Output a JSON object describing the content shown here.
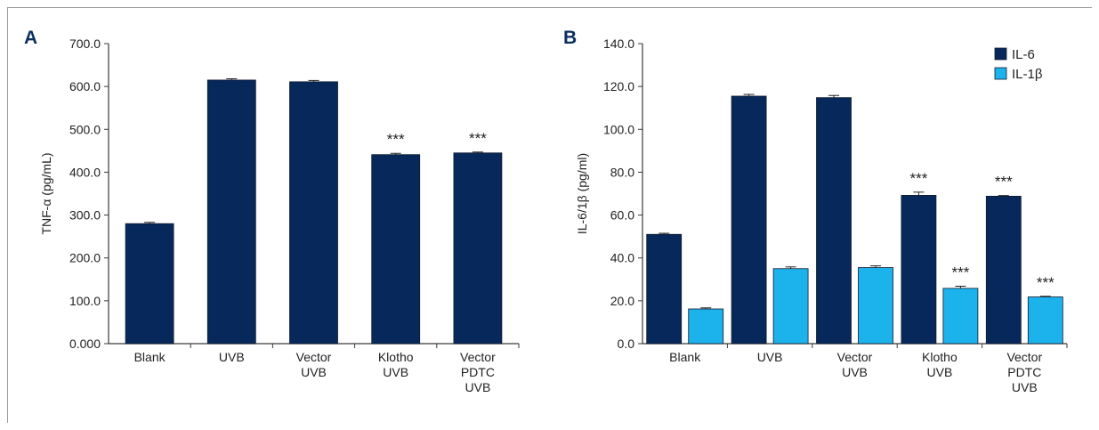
{
  "colors": {
    "il6": "#06285a",
    "il1b": "#1cb2ec",
    "axis": "#3a3a3a"
  },
  "chart_data": [
    {
      "panel": "A",
      "type": "bar",
      "ylabel": "TNF-α (pg/mL)",
      "ylim": [
        0,
        700
      ],
      "yticks": [
        "0.000",
        "100.0",
        "200.0",
        "300.0",
        "400.0",
        "500.0",
        "600.0",
        "700.0"
      ],
      "categories": [
        [
          "Blank"
        ],
        [
          "UVB"
        ],
        [
          "Vector",
          "UVB"
        ],
        [
          "Klotho",
          "UVB"
        ],
        [
          "Vector",
          "PDTC",
          "UVB"
        ]
      ],
      "series": [
        {
          "values": [
            280,
            615,
            611,
            441,
            445
          ],
          "errors": [
            3,
            3,
            3,
            3,
            2
          ],
          "color": "#06285a"
        }
      ],
      "annotations": [
        "",
        "",
        "",
        "***",
        "***"
      ]
    },
    {
      "panel": "B",
      "type": "bar",
      "ylabel": "IL-6/1β (pg/ml)",
      "ylim": [
        0,
        140
      ],
      "yticks": [
        "0.0",
        "20.0",
        "40.0",
        "60.0",
        "80.0",
        "100.0",
        "120.0",
        "140.0"
      ],
      "categories": [
        [
          "Blank"
        ],
        [
          "UVB"
        ],
        [
          "Vector",
          "UVB"
        ],
        [
          "Klotho",
          "UVB"
        ],
        [
          "Vector",
          "PDTC",
          "UVB"
        ]
      ],
      "series": [
        {
          "name": "IL-6",
          "values": [
            51,
            115.5,
            114.8,
            69.2,
            68.8
          ],
          "errors": [
            0.5,
            0.8,
            1.0,
            1.5,
            0.3
          ],
          "color": "#06285a"
        },
        {
          "name": "IL-1β",
          "values": [
            16.2,
            35,
            35.5,
            25.8,
            21.8
          ],
          "errors": [
            0.5,
            0.8,
            0.8,
            1.0,
            0.3
          ],
          "color": "#1cb2ec"
        }
      ],
      "annotations": [
        [
          "",
          "",
          "",
          "***",
          "***"
        ],
        [
          "",
          "",
          "",
          "***",
          "***"
        ]
      ],
      "legend": "top-right"
    }
  ]
}
